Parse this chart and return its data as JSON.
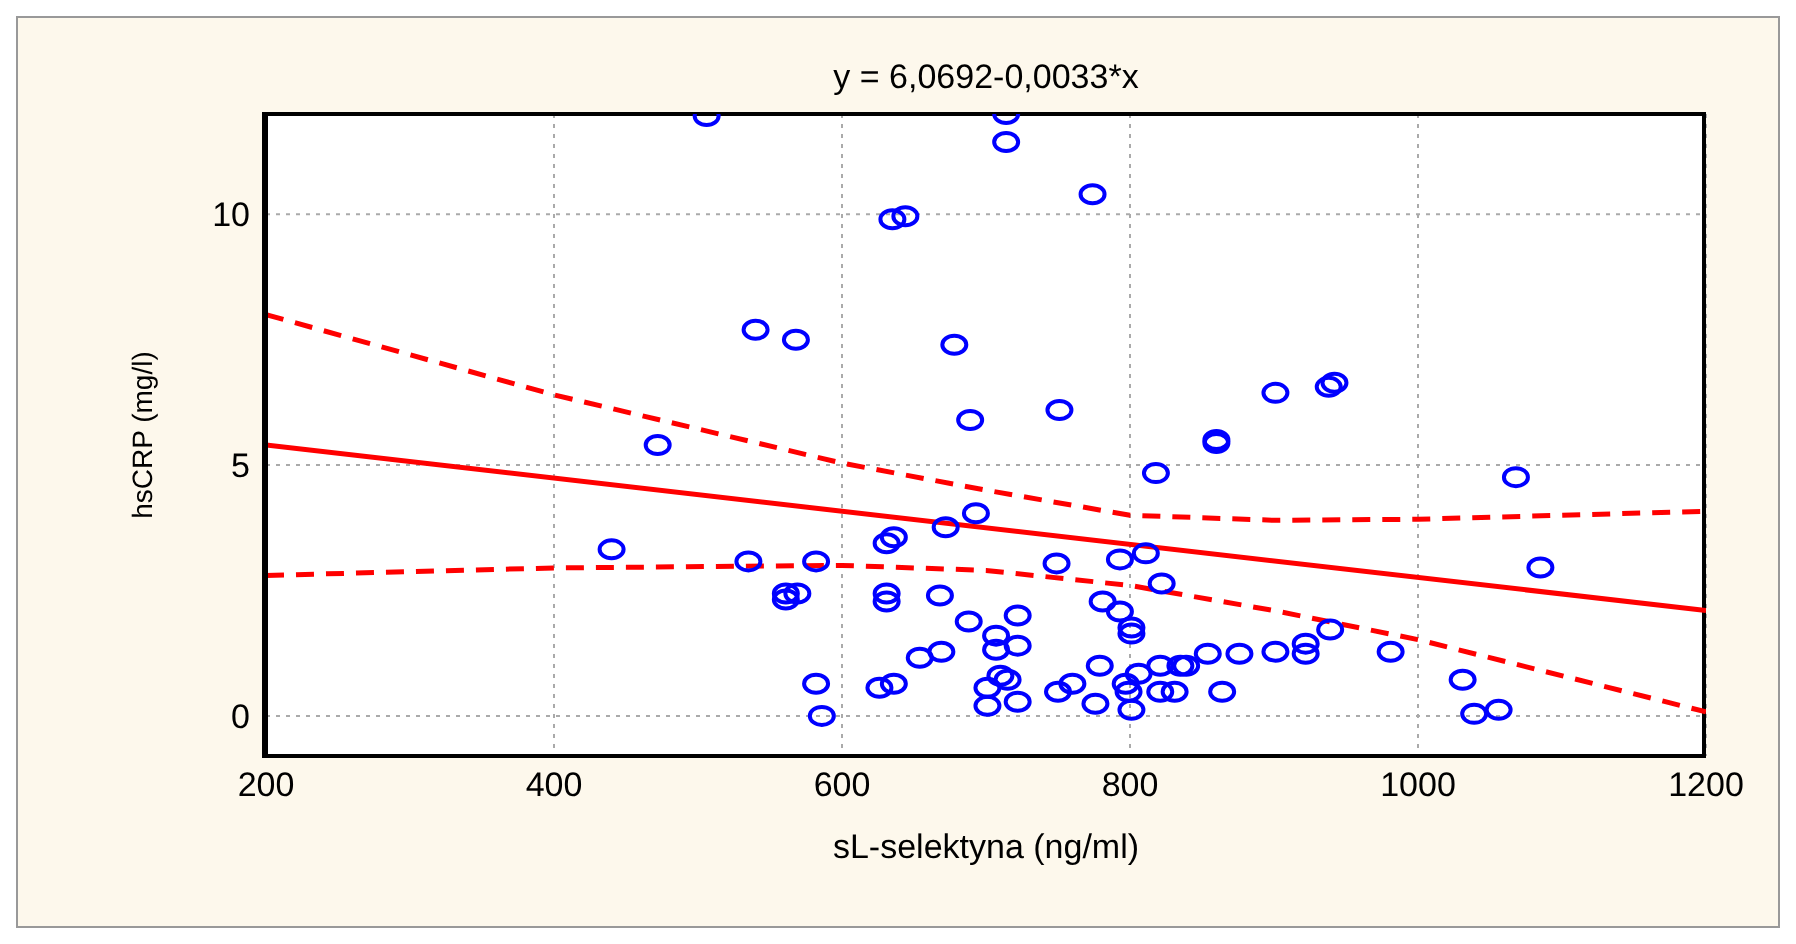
{
  "chart_data": {
    "type": "scatter",
    "title": "y = 6,0692-0,0033*x",
    "xlabel": "sL-selektyna (ng/ml)",
    "ylabel": "hsCRP (mg/l)",
    "xlim": [
      200,
      1200
    ],
    "xticks": [
      200,
      400,
      600,
      800,
      1000,
      1200
    ],
    "ylim": [
      -0.8,
      12
    ],
    "yticks": [
      0,
      5,
      10
    ],
    "grid": true,
    "marker": "circle",
    "series": [
      {
        "color": "#0000ff",
        "x": [
          506,
          714,
          714,
          774,
          635,
          644,
          540,
          568,
          678,
          689,
          751,
          472,
          1085,
          1068,
          901,
          942,
          938,
          860,
          860,
          818,
          440,
          535,
          582,
          561,
          569,
          561,
          582,
          586,
          631,
          636,
          631,
          631,
          626,
          636,
          654,
          669,
          668,
          672,
          693,
          688,
          707,
          707,
          722,
          722,
          710,
          715,
          701,
          701,
          722,
          749,
          750,
          760,
          776,
          779,
          781,
          793,
          801,
          801,
          793,
          811,
          822,
          797,
          799,
          801,
          806,
          821,
          835,
          821,
          831,
          839,
          854,
          876,
          901,
          922,
          922,
          939,
          981,
          864,
          1031,
          1039,
          1056
        ],
        "values": [
          11.96,
          12.0,
          11.44,
          10.4,
          9.9,
          9.96,
          7.7,
          7.5,
          7.4,
          5.9,
          6.1,
          5.4,
          2.96,
          4.76,
          6.44,
          6.64,
          6.56,
          5.44,
          5.5,
          4.84,
          3.32,
          3.08,
          3.08,
          2.44,
          2.44,
          2.32,
          0.64,
          0.0,
          3.44,
          3.56,
          2.44,
          2.28,
          0.56,
          0.64,
          1.16,
          1.28,
          2.4,
          3.76,
          4.04,
          1.88,
          1.6,
          1.32,
          2.0,
          1.4,
          0.8,
          0.72,
          0.56,
          0.2,
          0.28,
          3.04,
          0.48,
          0.64,
          0.24,
          1.0,
          2.28,
          2.08,
          1.76,
          1.64,
          3.12,
          3.24,
          2.64,
          0.64,
          0.48,
          0.12,
          0.84,
          1.0,
          1.0,
          0.48,
          0.48,
          1.0,
          1.24,
          1.24,
          1.28,
          1.44,
          1.24,
          1.72,
          1.28,
          0.48,
          0.72,
          0.04,
          0.12
        ]
      },
      {
        "type": "line",
        "color": "#ff0000",
        "line_style": "solid",
        "marker": "none",
        "x": [
          200,
          1200
        ],
        "values": [
          5.4,
          2.1
        ]
      },
      {
        "type": "line",
        "color": "#ff0000",
        "line_style": "dashed",
        "marker": "none",
        "x": [
          200,
          400,
          600,
          700,
          800,
          900,
          1000,
          1200
        ],
        "values": [
          8.0,
          6.4,
          5.04,
          4.5,
          4.0,
          3.9,
          3.92,
          4.08
        ]
      },
      {
        "type": "line",
        "color": "#ff0000",
        "line_style": "dashed",
        "marker": "none",
        "x": [
          200,
          400,
          600,
          700,
          800,
          900,
          1000,
          1200
        ],
        "values": [
          2.8,
          2.95,
          3.0,
          2.9,
          2.6,
          2.1,
          1.52,
          0.08
        ]
      }
    ]
  }
}
